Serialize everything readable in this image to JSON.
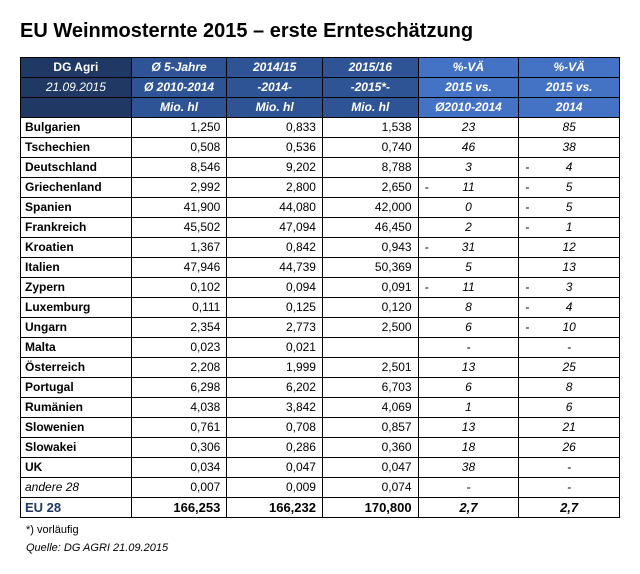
{
  "title": "EU Weinmosternte 2015 – erste Ernteschätzung",
  "header": {
    "col1": [
      "DG Agri",
      "21.09.2015",
      ""
    ],
    "col2": [
      "Ø 5-Jahre",
      "Ø 2010-2014",
      "Mio. hl"
    ],
    "col3": [
      "2014/15",
      "-2014-",
      "Mio. hl"
    ],
    "col4": [
      "2015/16",
      "-2015*-",
      "Mio. hl"
    ],
    "col5": [
      "%-VÄ",
      "2015 vs.",
      "Ø2010-2014"
    ],
    "col6": [
      "%-VÄ",
      "2015 vs.",
      "2014"
    ]
  },
  "header_colors": {
    "dark": "#1f3864",
    "mid": "#2f5496",
    "light": "#4472c4"
  },
  "rows": [
    {
      "c": "Bulgarien",
      "v": [
        "1,250",
        "0,833",
        "1,538",
        "23",
        "85"
      ],
      "neg": [
        false,
        false
      ]
    },
    {
      "c": "Tschechien",
      "v": [
        "0,508",
        "0,536",
        "0,740",
        "46",
        "38"
      ],
      "neg": [
        false,
        false
      ]
    },
    {
      "c": "Deutschland",
      "v": [
        "8,546",
        "9,202",
        "8,788",
        "3",
        "4"
      ],
      "neg": [
        false,
        true
      ]
    },
    {
      "c": "Griechenland",
      "v": [
        "2,992",
        "2,800",
        "2,650",
        "11",
        "5"
      ],
      "neg": [
        true,
        true
      ]
    },
    {
      "c": "Spanien",
      "v": [
        "41,900",
        "44,080",
        "42,000",
        "0",
        "5"
      ],
      "neg": [
        false,
        true
      ]
    },
    {
      "c": "Frankreich",
      "v": [
        "45,502",
        "47,094",
        "46,450",
        "2",
        "1"
      ],
      "neg": [
        false,
        true
      ]
    },
    {
      "c": "Kroatien",
      "v": [
        "1,367",
        "0,842",
        "0,943",
        "31",
        "12"
      ],
      "neg": [
        true,
        false
      ]
    },
    {
      "c": "Italien",
      "v": [
        "47,946",
        "44,739",
        "50,369",
        "5",
        "13"
      ],
      "neg": [
        false,
        false
      ]
    },
    {
      "c": "Zypern",
      "v": [
        "0,102",
        "0,094",
        "0,091",
        "11",
        "3"
      ],
      "neg": [
        true,
        true
      ]
    },
    {
      "c": "Luxemburg",
      "v": [
        "0,111",
        "0,125",
        "0,120",
        "8",
        "4"
      ],
      "neg": [
        false,
        true
      ]
    },
    {
      "c": "Ungarn",
      "v": [
        "2,354",
        "2,773",
        "2,500",
        "6",
        "10"
      ],
      "neg": [
        false,
        true
      ]
    },
    {
      "c": "Malta",
      "v": [
        "0,023",
        "0,021",
        "",
        "-",
        "-"
      ],
      "neg": [
        false,
        false
      ]
    },
    {
      "c": "Österreich",
      "v": [
        "2,208",
        "1,999",
        "2,501",
        "13",
        "25"
      ],
      "neg": [
        false,
        false
      ]
    },
    {
      "c": "Portugal",
      "v": [
        "6,298",
        "6,202",
        "6,703",
        "6",
        "8"
      ],
      "neg": [
        false,
        false
      ]
    },
    {
      "c": "Rumänien",
      "v": [
        "4,038",
        "3,842",
        "4,069",
        "1",
        "6"
      ],
      "neg": [
        false,
        false
      ]
    },
    {
      "c": "Slowenien",
      "v": [
        "0,761",
        "0,708",
        "0,857",
        "13",
        "21"
      ],
      "neg": [
        false,
        false
      ]
    },
    {
      "c": "Slowakei",
      "v": [
        "0,306",
        "0,286",
        "0,360",
        "18",
        "26"
      ],
      "neg": [
        false,
        false
      ]
    },
    {
      "c": "UK",
      "v": [
        "0,034",
        "0,047",
        "0,047",
        "38",
        "-"
      ],
      "neg": [
        false,
        false
      ]
    },
    {
      "c": "andere 28",
      "v": [
        "0,007",
        "0,009",
        "0,074",
        "-",
        "-"
      ],
      "neg": [
        false,
        false
      ],
      "italic": true
    },
    {
      "c": "EU 28",
      "v": [
        "166,253",
        "166,232",
        "170,800",
        "2,7",
        "2,7"
      ],
      "neg": [
        false,
        false
      ]
    }
  ],
  "footnote": "*) vorläufig",
  "source": "Quelle:   DG AGRI 21.09.2015",
  "col_widths": [
    "110",
    "95",
    "95",
    "95",
    "100",
    "100"
  ]
}
